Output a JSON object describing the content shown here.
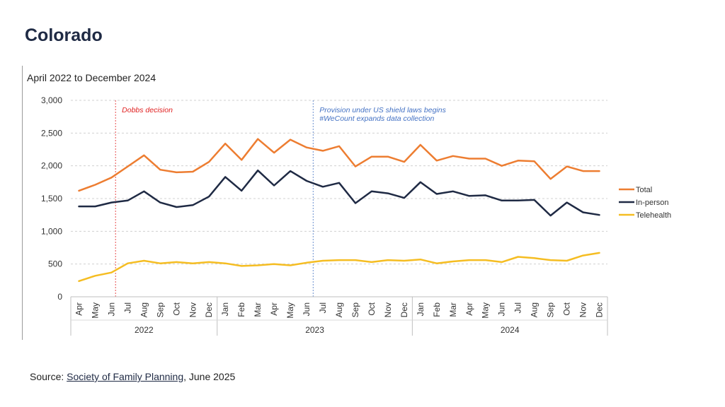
{
  "page": {
    "title": "Colorado"
  },
  "source": {
    "prefix": "Source: ",
    "link_text": "Society of Family Planning",
    "suffix": ", June 2025"
  },
  "chart_data": {
    "type": "line",
    "title": "April 2022 to December 2024",
    "xlabel": "",
    "ylabel": "",
    "ylim": [
      0,
      3000
    ],
    "yticks": [
      0,
      500,
      1000,
      1500,
      2000,
      2500,
      3000
    ],
    "ytick_labels": [
      "0",
      "500",
      "1,000",
      "1,500",
      "2,000",
      "2,500",
      "3,000"
    ],
    "grid": true,
    "legend_position": "right",
    "categories": [
      "Apr",
      "May",
      "Jun",
      "Jul",
      "Aug",
      "Sep",
      "Oct",
      "Nov",
      "Dec",
      "Jan",
      "Feb",
      "Mar",
      "Apr",
      "May",
      "Jun",
      "Jul",
      "Aug",
      "Sep",
      "Oct",
      "Nov",
      "Dec",
      "Jan",
      "Feb",
      "Mar",
      "Apr",
      "May",
      "Jun",
      "Jul",
      "Aug",
      "Sep",
      "Oct",
      "Nov",
      "Dec"
    ],
    "year_groups": [
      {
        "label": "2022",
        "start": 0,
        "end": 8
      },
      {
        "label": "2023",
        "start": 9,
        "end": 20
      },
      {
        "label": "2024",
        "start": 21,
        "end": 32
      }
    ],
    "series": [
      {
        "name": "Total",
        "color": "#ed7d31",
        "values": [
          1620,
          1710,
          1820,
          1990,
          2160,
          1940,
          1900,
          1910,
          2060,
          2340,
          2090,
          2410,
          2200,
          2400,
          2280,
          2230,
          2300,
          1990,
          2140,
          2140,
          2060,
          2320,
          2080,
          2150,
          2110,
          2110,
          2000,
          2080,
          2070,
          1800,
          1990,
          1920,
          1920
        ]
      },
      {
        "name": "In-person",
        "color": "#1f2a44",
        "values": [
          1380,
          1380,
          1440,
          1470,
          1610,
          1440,
          1370,
          1400,
          1530,
          1830,
          1620,
          1930,
          1700,
          1920,
          1770,
          1680,
          1740,
          1430,
          1610,
          1580,
          1510,
          1750,
          1570,
          1610,
          1540,
          1550,
          1470,
          1470,
          1480,
          1240,
          1440,
          1290,
          1250
        ]
      },
      {
        "name": "Telehealth",
        "color": "#f5bd22",
        "values": [
          240,
          320,
          370,
          510,
          550,
          510,
          530,
          510,
          530,
          510,
          470,
          480,
          500,
          480,
          520,
          550,
          560,
          560,
          530,
          560,
          550,
          570,
          510,
          540,
          560,
          560,
          530,
          610,
          590,
          560,
          550,
          630,
          670
        ]
      }
    ],
    "annotations": [
      {
        "at_index": 2.25,
        "color": "#e02020",
        "lines": [
          "Dobbs decision"
        ]
      },
      {
        "at_index": 14.4,
        "color": "#4472c4",
        "lines": [
          "Provision under US shield laws begins",
          "#WeCount expands data collection"
        ]
      }
    ]
  }
}
